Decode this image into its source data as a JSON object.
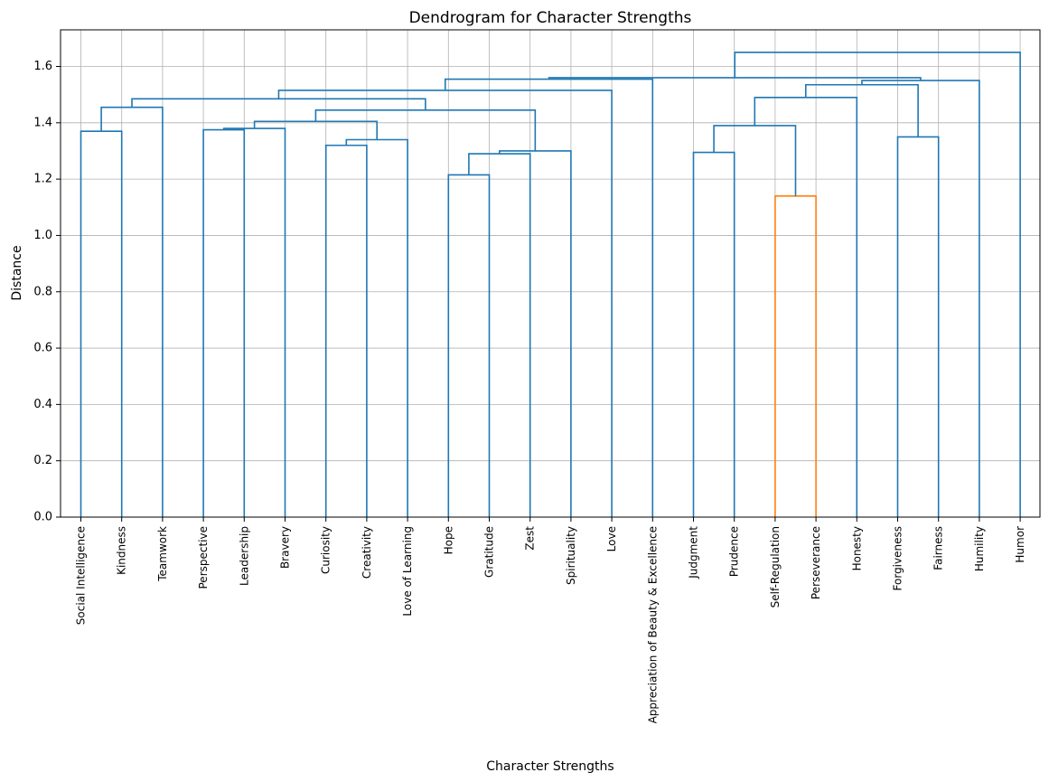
{
  "chart_data": {
    "type": "dendrogram",
    "title": "Dendrogram for Character Strengths",
    "xlabel": "Character Strengths",
    "ylabel": "Distance",
    "ylim": [
      0,
      1.73
    ],
    "yticks": [
      0.0,
      0.2,
      0.4,
      0.6,
      0.8,
      1.0,
      1.2,
      1.4,
      1.6
    ],
    "ytick_labels": [
      "0.0",
      "0.2",
      "0.4",
      "0.6",
      "0.8",
      "1.0",
      "1.2",
      "1.4",
      "1.6"
    ],
    "grid": true,
    "colors": {
      "cluster": "#ff7f0e",
      "above_threshold": "#1f77b4",
      "grid": "#b0b0b0"
    },
    "leaves": [
      "Social Intelligence",
      "Kindness",
      "Teamwork",
      "Perspective",
      "Leadership",
      "Bravery",
      "Curiosity",
      "Creativity",
      "Love of Learning",
      "Hope",
      "Gratitude",
      "Zest",
      "Spirituality",
      "Love",
      "Appreciation of Beauty & Excellence",
      "Judgment",
      "Prudence",
      "Self-Regulation",
      "Perseverance",
      "Honesty",
      "Forgiveness",
      "Fairness",
      "Humility",
      "Humor"
    ],
    "merges": [
      {
        "left": "L0",
        "right": "L1",
        "height": 1.37,
        "color": "above_threshold"
      },
      {
        "left": "M0",
        "right": "L2",
        "height": 1.455,
        "color": "above_threshold"
      },
      {
        "left": "L3",
        "right": "L4",
        "height": 1.375,
        "color": "above_threshold"
      },
      {
        "left": "M2",
        "right": "L5",
        "height": 1.38,
        "color": "above_threshold"
      },
      {
        "left": "L6",
        "right": "L7",
        "height": 1.32,
        "color": "above_threshold"
      },
      {
        "left": "M4",
        "right": "L8",
        "height": 1.34,
        "color": "above_threshold"
      },
      {
        "left": "M3",
        "right": "M5",
        "height": 1.405,
        "color": "above_threshold"
      },
      {
        "left": "L9",
        "right": "L10",
        "height": 1.215,
        "color": "above_threshold"
      },
      {
        "left": "M7",
        "right": "L11",
        "height": 1.29,
        "color": "above_threshold"
      },
      {
        "left": "M8",
        "right": "L12",
        "height": 1.3,
        "color": "above_threshold"
      },
      {
        "left": "M6",
        "right": "M9",
        "height": 1.445,
        "color": "above_threshold"
      },
      {
        "left": "M1",
        "right": "M10",
        "height": 1.485,
        "color": "above_threshold"
      },
      {
        "left": "M11",
        "right": "L13",
        "height": 1.515,
        "color": "above_threshold"
      },
      {
        "left": "M12",
        "right": "L14",
        "height": 1.555,
        "color": "above_threshold"
      },
      {
        "left": "L15",
        "right": "L16",
        "height": 1.295,
        "color": "above_threshold"
      },
      {
        "left": "L17",
        "right": "L18",
        "height": 1.14,
        "color": "cluster"
      },
      {
        "left": "M14",
        "right": "M15",
        "height": 1.39,
        "color": "above_threshold"
      },
      {
        "left": "M16",
        "right": "L19",
        "height": 1.49,
        "color": "above_threshold"
      },
      {
        "left": "L20",
        "right": "L21",
        "height": 1.35,
        "color": "above_threshold"
      },
      {
        "left": "M17",
        "right": "M18",
        "height": 1.535,
        "color": "above_threshold"
      },
      {
        "left": "M19",
        "right": "L22",
        "height": 1.55,
        "color": "above_threshold"
      },
      {
        "left": "M13",
        "right": "M20",
        "height": 1.56,
        "color": "above_threshold"
      },
      {
        "left": "M21",
        "right": "L23",
        "height": 1.65,
        "color": "above_threshold"
      }
    ]
  }
}
